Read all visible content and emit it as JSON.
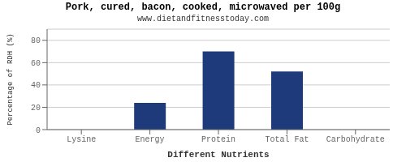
{
  "chart_data": {
    "type": "bar",
    "title": "Pork, cured, bacon, cooked, microwaved per 100g",
    "subtitle": "www.dietandfitnesstoday.com",
    "xlabel": "Different Nutrients",
    "ylabel": "Percentage of RDH (%)",
    "categories": [
      "Lysine",
      "Energy",
      "Protein",
      "Total Fat",
      "Carbohydrate"
    ],
    "values": [
      0,
      24,
      70,
      52,
      0
    ],
    "color": "#1f3a7a",
    "ylim": [
      0,
      90
    ],
    "yticks": [
      0,
      20,
      40,
      60,
      80
    ],
    "grid": true
  }
}
